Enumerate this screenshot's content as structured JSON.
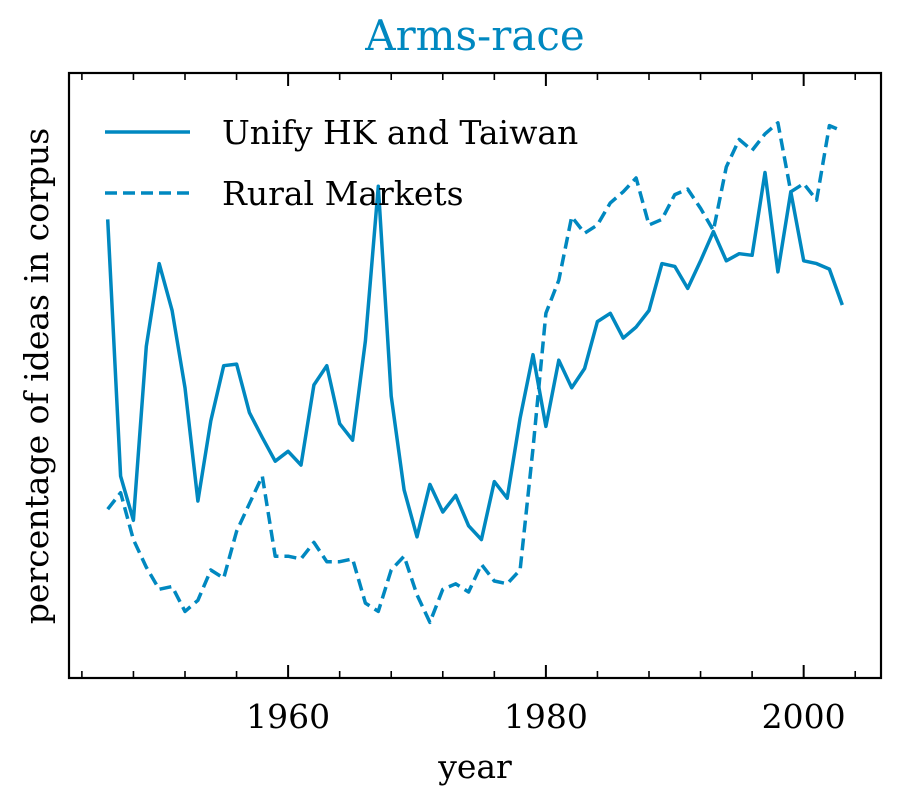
{
  "chart_data": {
    "type": "line",
    "title": "Arms-race",
    "xlabel": "year",
    "ylabel": "percentage of ideas in corpus",
    "xlim": [
      1943,
      2006
    ],
    "ylim": [
      0,
      100
    ],
    "xticks": [
      1960,
      1980,
      2000
    ],
    "yticks_labeled": false,
    "legend_position": "top-left",
    "colors": {
      "line": "#0088c0",
      "title": "#0088c0",
      "text": "#000000"
    },
    "series": [
      {
        "name": "Unify HK and Taiwan",
        "style": "solid",
        "x": [
          1946,
          1947,
          1948,
          1949,
          1950,
          1951,
          1952,
          1953,
          1954,
          1955,
          1956,
          1957,
          1958,
          1959,
          1960,
          1961,
          1962,
          1963,
          1964,
          1965,
          1966,
          1967,
          1968,
          1969,
          1970,
          1971,
          1972,
          1973,
          1974,
          1975,
          1976,
          1977,
          1978,
          1979,
          1980,
          1981,
          1982,
          1983,
          1984,
          1985,
          1986,
          1987,
          1988,
          1989,
          1990,
          1991,
          1992,
          1993,
          1994,
          1995,
          1996,
          1997,
          1998,
          1999,
          2000,
          2001,
          2002,
          2003
        ],
        "values": [
          78.0,
          31.5,
          23.5,
          55.0,
          70.0,
          61.5,
          47.5,
          27.0,
          41.5,
          51.5,
          51.8,
          43.0,
          38.5,
          34.2,
          36.0,
          33.5,
          48.0,
          51.5,
          41.0,
          38.0,
          56.0,
          84.0,
          46.0,
          29.0,
          20.5,
          30.0,
          25.0,
          28.0,
          22.5,
          20.0,
          30.5,
          27.5,
          42.0,
          53.5,
          40.5,
          52.5,
          47.5,
          51.0,
          59.5,
          61.0,
          56.5,
          58.5,
          61.5,
          70.0,
          69.5,
          65.5,
          70.5,
          75.8,
          70.5,
          71.8,
          71.5,
          86.5,
          68.5,
          83.0,
          70.5,
          70.0,
          69.0,
          62.5
        ]
      },
      {
        "name": "Rural Markets",
        "style": "dashed",
        "x": [
          1946,
          1947,
          1948,
          1949,
          1950,
          1951,
          1952,
          1953,
          1954,
          1955,
          1956,
          1957,
          1958,
          1959,
          1960,
          1961,
          1962,
          1963,
          1964,
          1965,
          1966,
          1967,
          1968,
          1969,
          1970,
          1971,
          1972,
          1973,
          1974,
          1975,
          1976,
          1977,
          1978,
          1979,
          1980,
          1981,
          1982,
          1983,
          1984,
          1985,
          1986,
          1987,
          1988,
          1989,
          1990,
          1991,
          1992,
          1993,
          1994,
          1995,
          1996,
          1997,
          1998,
          1999,
          2000,
          2001,
          2002,
          2003
        ],
        "values": [
          25.5,
          28.5,
          20.0,
          15.0,
          11.0,
          11.5,
          7.0,
          9.0,
          14.5,
          13.0,
          21.5,
          26.5,
          31.5,
          17.0,
          17.0,
          16.5,
          19.5,
          16.0,
          16.0,
          16.5,
          8.5,
          7.0,
          14.5,
          17.0,
          10.0,
          5.0,
          11.0,
          12.0,
          10.5,
          15.5,
          12.5,
          12.0,
          14.5,
          36.5,
          61.0,
          67.0,
          78.5,
          75.5,
          77.0,
          81.0,
          83.0,
          85.5,
          77.0,
          78.0,
          82.5,
          83.5,
          80.0,
          76.0,
          87.5,
          92.5,
          90.5,
          93.5,
          95.5,
          83.0,
          84.5,
          81.5,
          95.0,
          94.0
        ]
      }
    ]
  }
}
